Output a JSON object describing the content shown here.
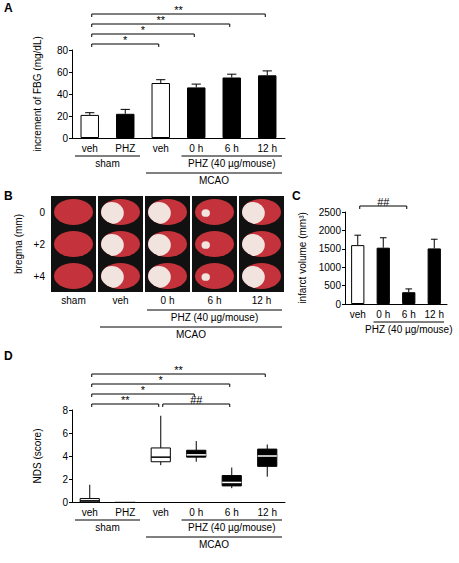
{
  "chart_data": [
    {
      "panel": "A",
      "type": "bar",
      "categories": [
        "veh",
        "PHZ",
        "veh",
        "0 h",
        "6 h",
        "12 h"
      ],
      "values": [
        21,
        22,
        50,
        46,
        55,
        57
      ],
      "errors": [
        2,
        4,
        3,
        3,
        3,
        4
      ],
      "colors": [
        "#ffffff",
        "#000000",
        "#ffffff",
        "#000000",
        "#000000",
        "#000000"
      ],
      "y_label": "increment of FBG (mg/dL)",
      "ylim": [
        0,
        80
      ],
      "yticks": [
        0,
        20,
        40,
        60,
        80
      ],
      "grid": false,
      "groups": [
        {
          "label": "sham",
          "from": 0,
          "to": 1
        },
        {
          "label": "PHZ (40 µg/mouse)",
          "from": 3,
          "to": 5
        },
        {
          "label": "MCAO",
          "from": 2,
          "to": 5
        }
      ],
      "comparisons": [
        {
          "from": 0,
          "to": 2,
          "label": "*"
        },
        {
          "from": 0,
          "to": 3,
          "label": "*"
        },
        {
          "from": 0,
          "to": 4,
          "label": "**"
        },
        {
          "from": 0,
          "to": 5,
          "label": "**"
        }
      ]
    },
    {
      "panel": "B",
      "type": "image",
      "row_title": "bregma (mm)",
      "rows": [
        "0",
        "+2",
        "+4"
      ],
      "columns": [
        "sham",
        "veh",
        "0 h",
        "6 h",
        "12 h"
      ],
      "groups": [
        {
          "label": "PHZ (40 µg/mouse)",
          "from": 2,
          "to": 4
        },
        {
          "label": "MCAO",
          "from": 1,
          "to": 4
        }
      ]
    },
    {
      "panel": "C",
      "type": "bar",
      "categories": [
        "veh",
        "0 h",
        "6 h",
        "12 h"
      ],
      "values": [
        1600,
        1530,
        320,
        1510
      ],
      "errors": [
        270,
        270,
        90,
        250
      ],
      "colors": [
        "#ffffff",
        "#000000",
        "#000000",
        "#000000"
      ],
      "y_label": "infarct volume (mm³)",
      "ylim": [
        0,
        2500
      ],
      "yticks": [
        0,
        500,
        1000,
        1500,
        2000,
        2500
      ],
      "grid": false,
      "groups": [
        {
          "label": "PHZ (40 µg/mouse)",
          "from": 1,
          "to": 3
        }
      ],
      "comparisons": [
        {
          "from": 0,
          "to": 2,
          "label": "##"
        }
      ]
    },
    {
      "panel": "D",
      "type": "box",
      "categories": [
        "veh",
        "PHZ",
        "veh",
        "0 h",
        "6 h",
        "12 h"
      ],
      "boxes": [
        [
          0,
          0,
          0.1,
          0.3,
          1.5
        ],
        [
          0,
          0,
          0,
          0,
          0
        ],
        [
          3.2,
          3.5,
          3.9,
          4.7,
          7.5
        ],
        [
          3.5,
          3.9,
          4.1,
          4.5,
          5.3
        ],
        [
          1.2,
          1.4,
          1.7,
          2.3,
          3.0
        ],
        [
          2.2,
          3.1,
          4.0,
          4.6,
          5.0
        ]
      ],
      "colors": [
        "#ffffff",
        "#000000",
        "#ffffff",
        "#000000",
        "#000000",
        "#000000"
      ],
      "y_label": "NDS (score)",
      "ylim": [
        0,
        8
      ],
      "yticks": [
        0,
        2,
        4,
        6,
        8
      ],
      "grid": false,
      "groups": [
        {
          "label": "sham",
          "from": 0,
          "to": 1
        },
        {
          "label": "PHZ (40 µg/mouse)",
          "from": 3,
          "to": 5
        },
        {
          "label": "MCAO",
          "from": 2,
          "to": 5
        }
      ],
      "comparisons": [
        {
          "from": 0,
          "to": 2,
          "label": "**"
        },
        {
          "from": 2,
          "to": 4,
          "label": "##"
        },
        {
          "from": 0,
          "to": 3,
          "label": "*"
        },
        {
          "from": 0,
          "to": 4,
          "label": "*"
        },
        {
          "from": 0,
          "to": 5,
          "label": "**"
        }
      ]
    }
  ]
}
